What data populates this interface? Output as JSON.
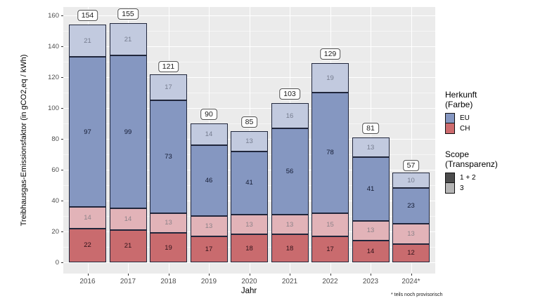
{
  "chart_data": {
    "type": "bar",
    "stacked": true,
    "xlabel": "Jahr",
    "ylabel": "Treibhausgas-Emissionsfaktor (in gCO2,eq / kWh)",
    "ylim": [
      0,
      160
    ],
    "ytick_step": 20,
    "grid": true,
    "legend_position": "right",
    "categories": [
      "2016",
      "2017",
      "2018",
      "2019",
      "2020",
      "2021",
      "2022",
      "2023",
      "2024*"
    ],
    "series": [
      {
        "name": "CH Scope 1+2",
        "herkunft": "CH",
        "scope": "1 + 2",
        "color": "#C96B6E",
        "label_color": "#2E1118",
        "values": [
          22,
          21,
          19,
          17,
          18,
          18,
          17,
          14,
          12
        ]
      },
      {
        "name": "CH Scope 3",
        "herkunft": "CH",
        "scope": "3",
        "color": "#E2B3B8",
        "label_color": "#8C8288",
        "values": [
          14,
          14,
          13,
          13,
          13,
          13,
          15,
          13,
          13
        ]
      },
      {
        "name": "EU Scope 1+2",
        "herkunft": "EU",
        "scope": "1 + 2",
        "color": "#8597C1",
        "label_color": "#141B33",
        "values": [
          97,
          99,
          73,
          46,
          41,
          56,
          78,
          41,
          23
        ]
      },
      {
        "name": "EU Scope 3",
        "herkunft": "EU",
        "scope": "3",
        "color": "#C2CADF",
        "label_color": "#757C8E",
        "values": [
          21,
          21,
          17,
          14,
          13,
          16,
          19,
          13,
          10
        ]
      }
    ],
    "totals": [
      154,
      155,
      121,
      90,
      85,
      103,
      129,
      81,
      57
    ]
  },
  "legend": {
    "herkunft_title_line1": "Herkunft",
    "herkunft_title_line2": "(Farbe)",
    "herkunft_items": [
      {
        "label": "EU",
        "color": "#8597C1"
      },
      {
        "label": "CH",
        "color": "#CD6B6E"
      }
    ],
    "scope_title_line1": "Scope",
    "scope_title_line2": "(Transparenz)",
    "scope_items": [
      {
        "label": "1 + 2",
        "color": "#4D4D4D"
      },
      {
        "label": "3",
        "color": "#B5B5B5"
      }
    ]
  },
  "footnote": "* teils noch provisorisch",
  "colors": {
    "panel_background": "#EBEBEB",
    "grid_major": "#FFFFFF",
    "bar_border": "#20263B",
    "axis_text": "#4D4D4D"
  }
}
